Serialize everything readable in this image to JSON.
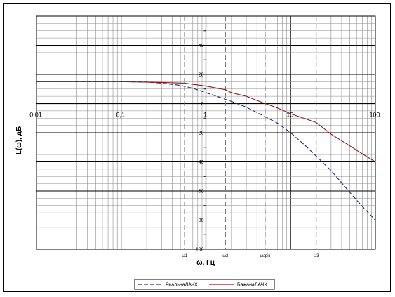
{
  "chart_data": {
    "type": "line",
    "xscale": "log",
    "xlim": [
      0.01,
      100
    ],
    "ylim": [
      -100,
      60
    ],
    "xticks": [
      "0,01",
      "0,1",
      "1",
      "10",
      "100"
    ],
    "yticks": [
      "40",
      "20",
      "0",
      "-20",
      "-40",
      "-60",
      "-80",
      "-100"
    ],
    "xlabel": "ω, Гц",
    "ylabel": "L(ω), дБ",
    "grid": true,
    "legend_position": "bottom",
    "markers": [
      {
        "label": "ω1",
        "x": 0.56
      },
      {
        "label": "ω2",
        "x": 1.7
      },
      {
        "label": "ωзріз",
        "x": 5
      },
      {
        "label": "ω3",
        "x": 20
      }
    ],
    "series": [
      {
        "name": "РеальнаЛАЧХ",
        "color": "#1a2a6c",
        "dash": true,
        "x": [
          0.01,
          0.1,
          0.2,
          0.3,
          0.5,
          0.7,
          1,
          1.5,
          2,
          3,
          5,
          7,
          10,
          15,
          20,
          30,
          50,
          70,
          100
        ],
        "y": [
          15,
          15,
          14.8,
          14,
          12.5,
          10.5,
          7.5,
          4,
          1.5,
          -2.5,
          -9,
          -13.5,
          -20,
          -29,
          -36,
          -46,
          -61,
          -70.5,
          -80
        ]
      },
      {
        "name": "БажанаЛАЧХ",
        "color": "#8b1a1a",
        "dash": false,
        "x": [
          0.01,
          0.1,
          0.3,
          0.56,
          1,
          1.7,
          2,
          3,
          5,
          7,
          10,
          15,
          20,
          30,
          50,
          70,
          100
        ],
        "y": [
          15,
          15,
          14.5,
          14,
          12,
          9.5,
          7.5,
          5,
          0,
          -3,
          -7,
          -10.5,
          -13,
          -21,
          -29,
          -34.5,
          -40
        ]
      }
    ]
  }
}
